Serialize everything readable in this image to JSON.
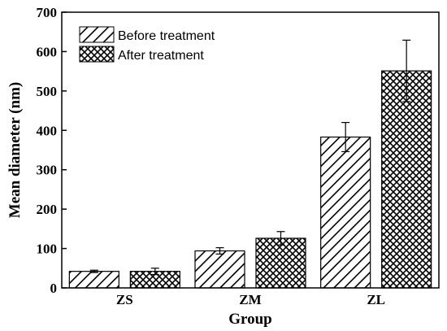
{
  "chart_data": {
    "type": "bar",
    "categories": [
      "ZS",
      "ZM",
      "ZL"
    ],
    "series": [
      {
        "name": "Before treatment",
        "pattern": "diagonal-hatch",
        "values": [
          42,
          94,
          383
        ],
        "errors": [
          3,
          8,
          37
        ]
      },
      {
        "name": "After treatment",
        "pattern": "cross-hatch",
        "values": [
          42,
          126,
          551
        ],
        "errors": [
          8,
          17,
          78
        ]
      }
    ],
    "xlabel": "Group",
    "ylabel": "Mean diameter (nm)",
    "ylim": [
      0,
      700
    ],
    "yticks": [
      "0",
      "100",
      "200",
      "300",
      "400",
      "500",
      "600",
      "700"
    ],
    "grid": false,
    "legend_position": "top-left",
    "colors": {
      "stroke": "#000000",
      "fill": "#ffffff"
    }
  }
}
